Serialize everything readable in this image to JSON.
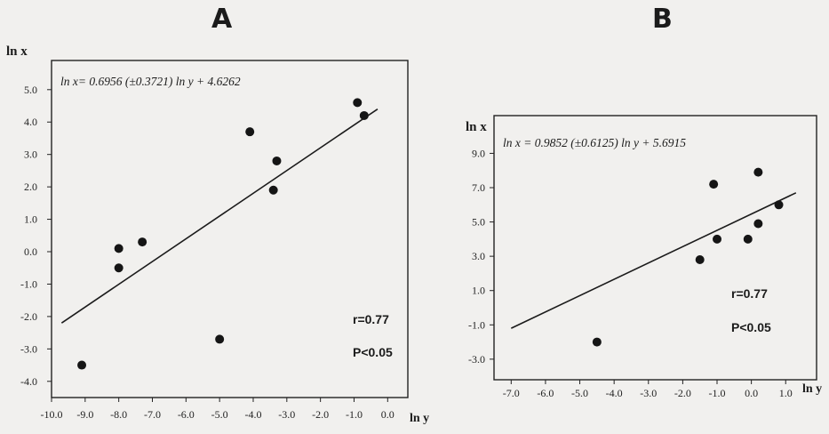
{
  "chart_data": [
    {
      "type": "scatter",
      "panel_label": "A",
      "xlabel": "ln y",
      "ylabel": "ln x",
      "equation": "ln x= 0.6956 (±0.3721) ln y + 4.6262",
      "r_text": "r=0.77",
      "p_text": "P<0.05",
      "xlim": [
        -10.0,
        0.6
      ],
      "ylim": [
        -4.5,
        5.9
      ],
      "x_ticks": [
        -10.0,
        -9.0,
        -8.0,
        -7.0,
        -6.0,
        -5.0,
        -4.0,
        -3.0,
        -2.0,
        -1.0,
        0.0
      ],
      "x_tick_labels": [
        "-10.0",
        "-9.0",
        "-8.0",
        "-7.0",
        "-6.0",
        "-5.0",
        "-4.0",
        "-3.0",
        "-2.0",
        "-1.0",
        "0.0"
      ],
      "y_ticks": [
        5.0,
        4.0,
        3.0,
        2.0,
        1.0,
        0.0,
        -1.0,
        -2.0,
        -3.0,
        -4.0
      ],
      "y_tick_labels": [
        "5.0",
        "4.0",
        "3.0",
        "2.0",
        "1.0",
        "0.0",
        "-1.0",
        "-2.0",
        "-3.0",
        "-4.0"
      ],
      "points": [
        {
          "x": -9.1,
          "y": -3.5
        },
        {
          "x": -8.0,
          "y": 0.1
        },
        {
          "x": -8.0,
          "y": -0.5
        },
        {
          "x": -7.3,
          "y": 0.3
        },
        {
          "x": -5.0,
          "y": -2.7
        },
        {
          "x": -4.1,
          "y": 3.7
        },
        {
          "x": -3.3,
          "y": 2.8
        },
        {
          "x": -3.4,
          "y": 1.9
        },
        {
          "x": -0.9,
          "y": 4.6
        },
        {
          "x": -0.7,
          "y": 4.2
        }
      ],
      "fit_line": {
        "x1": -9.7,
        "y1": -2.2,
        "x2": -0.3,
        "y2": 4.4
      }
    },
    {
      "type": "scatter",
      "panel_label": "B",
      "xlabel": "ln y",
      "ylabel": "ln x",
      "equation": "ln x = 0.9852 (±0.6125) ln y + 5.6915",
      "r_text": "r=0.77",
      "p_text": "P<0.05",
      "xlim": [
        -7.5,
        1.9
      ],
      "ylim": [
        -4.2,
        11.2
      ],
      "x_ticks": [
        -7.0,
        -6.0,
        -5.0,
        -4.0,
        -3.0,
        -2.0,
        -1.0,
        0.0,
        1.0
      ],
      "x_tick_labels": [
        "-7.0",
        "-6.0",
        "-5.0",
        "-4.0",
        "-3.0",
        "-2.0",
        "-1.0",
        "0.0",
        "1.0"
      ],
      "y_ticks": [
        9.0,
        7.0,
        5.0,
        3.0,
        1.0,
        -1.0,
        -3.0
      ],
      "y_tick_labels": [
        "9.0",
        "7.0",
        "5.0",
        "3.0",
        "1.0",
        "-1.0",
        "-3.0"
      ],
      "points": [
        {
          "x": -4.5,
          "y": -2.0
        },
        {
          "x": -1.5,
          "y": 2.8
        },
        {
          "x": -1.1,
          "y": 7.2
        },
        {
          "x": -1.0,
          "y": 4.0
        },
        {
          "x": -0.1,
          "y": 4.0
        },
        {
          "x": 0.2,
          "y": 7.9
        },
        {
          "x": 0.2,
          "y": 4.9
        },
        {
          "x": 0.8,
          "y": 6.0
        }
      ],
      "fit_line": {
        "x1": -7.0,
        "y1": -1.2,
        "x2": 1.3,
        "y2": 6.7
      }
    }
  ]
}
